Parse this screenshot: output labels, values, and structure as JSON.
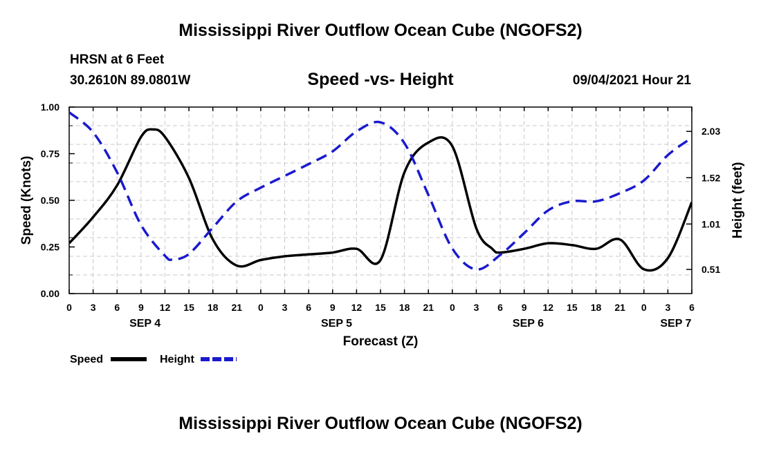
{
  "header": {
    "title": "Mississippi River Outflow Ocean Cube (NGOFS2)",
    "station": "HRSN at 6 Feet",
    "coords": "30.2610N  89.0801W",
    "subtitle": "Speed -vs- Height",
    "datetime": "09/04/2021 Hour 21"
  },
  "footer": {
    "title": "Mississippi River Outflow Ocean Cube (NGOFS2)"
  },
  "colors": {
    "speed": "#000000",
    "height": "#1a1acd",
    "grid": "#c8c8c8"
  },
  "chart_data": {
    "type": "line",
    "title": "Speed -vs- Height",
    "xlabel": "Forecast (Z)",
    "ylabel": "Speed (Knots)",
    "y2label": "Height (feet)",
    "xlim": [
      0,
      78
    ],
    "ylim": [
      0,
      1
    ],
    "y2lim": [
      0.244,
      2.298
    ],
    "grid": true,
    "x_ticks": [
      0,
      3,
      6,
      9,
      12,
      15,
      18,
      21,
      24,
      27,
      30,
      33,
      36,
      39,
      42,
      45,
      48,
      51,
      54,
      57,
      60,
      63,
      66,
      69,
      72,
      75,
      78
    ],
    "x_tick_labels": [
      "0",
      "3",
      "6",
      "9",
      "12",
      "15",
      "18",
      "21",
      "0",
      "3",
      "6",
      "9",
      "12",
      "15",
      "18",
      "21",
      "0",
      "3",
      "6",
      "9",
      "12",
      "15",
      "18",
      "21",
      "0",
      "3",
      "6"
    ],
    "y_ticks": [
      0,
      0.25,
      0.5,
      0.75,
      1.0
    ],
    "y_tick_labels": [
      "0.00",
      "0.25",
      "0.50",
      "0.75",
      "1.00"
    ],
    "y2_ticks": [
      0.51,
      1.01,
      1.52,
      2.03
    ],
    "y2_tick_labels": [
      "0.51",
      "1.01",
      "1.52",
      "2.03"
    ],
    "day_labels": [
      {
        "x": 9.5,
        "label": "SEP 4"
      },
      {
        "x": 33.5,
        "label": "SEP 5"
      },
      {
        "x": 57.5,
        "label": "SEP 6"
      },
      {
        "x": 76,
        "label": "SEP 7"
      }
    ],
    "legend": [
      {
        "name": "Speed",
        "style": "solid"
      },
      {
        "name": "Height",
        "style": "dashed"
      }
    ],
    "series": [
      {
        "name": "Speed",
        "style": "solid",
        "x": [
          0,
          3,
          6,
          9,
          10.5,
          12,
          15,
          18,
          21,
          24,
          27,
          30,
          33,
          36,
          39,
          42,
          45,
          48,
          51,
          53,
          54,
          57,
          60,
          63,
          66,
          69,
          72,
          75,
          78
        ],
        "values": [
          0.27,
          0.41,
          0.58,
          0.84,
          0.88,
          0.84,
          0.62,
          0.29,
          0.15,
          0.18,
          0.2,
          0.21,
          0.22,
          0.24,
          0.18,
          0.65,
          0.81,
          0.79,
          0.35,
          0.24,
          0.22,
          0.24,
          0.27,
          0.26,
          0.24,
          0.29,
          0.13,
          0.19,
          0.49
        ]
      },
      {
        "name": "Height",
        "style": "dashed",
        "x": [
          0,
          3,
          6,
          9,
          12,
          13,
          15,
          18,
          21,
          24,
          27,
          30,
          33,
          36,
          39,
          42,
          45,
          48,
          51,
          54,
          57,
          60,
          63,
          66,
          69,
          72,
          75,
          78
        ],
        "values": [
          2.24,
          2.02,
          1.58,
          1.0,
          0.66,
          0.62,
          0.68,
          0.97,
          1.26,
          1.41,
          1.54,
          1.67,
          1.81,
          2.03,
          2.13,
          1.9,
          1.33,
          0.74,
          0.51,
          0.67,
          0.91,
          1.16,
          1.26,
          1.26,
          1.35,
          1.49,
          1.77,
          1.96
        ]
      }
    ]
  }
}
